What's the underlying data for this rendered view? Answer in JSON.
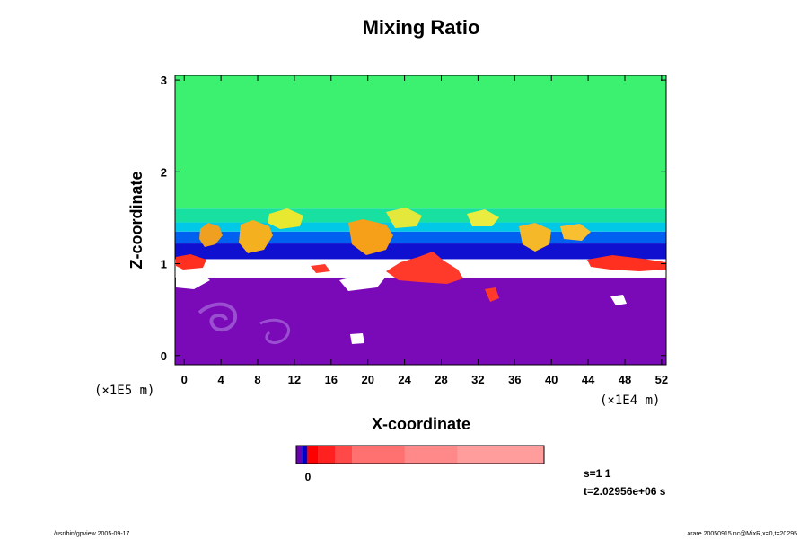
{
  "chart_data": {
    "type": "heatmap",
    "title": "Mixing Ratio",
    "xlabel": "X-coordinate",
    "ylabel": "Z-coordinate",
    "x_unit": "(×1E4 m)",
    "y_unit": "(×1E5 m)",
    "xlim": [
      -1,
      52.5
    ],
    "ylim": [
      -0.1,
      3.05
    ],
    "x_ticks": [
      0,
      4,
      8,
      12,
      16,
      20,
      24,
      28,
      32,
      36,
      40,
      44,
      48,
      52
    ],
    "y_ticks": [
      0,
      1,
      2,
      3
    ],
    "x_tick_labels": [
      "0",
      "4",
      "8",
      "12",
      "16",
      "20",
      "24",
      "28",
      "32",
      "36",
      "40",
      "44",
      "48",
      "52"
    ],
    "y_tick_labels": [
      "0",
      "1",
      "2",
      "3"
    ],
    "field_layers": [
      {
        "name": "lower-purple",
        "z_from": -0.1,
        "z_to": 0.85,
        "color": "#7a0ab8"
      },
      {
        "name": "white-gap",
        "z_from": 0.85,
        "z_to": 1.05,
        "color": "#ffffff"
      },
      {
        "name": "dark-blue",
        "z_from": 1.05,
        "z_to": 1.22,
        "color": "#1010d0"
      },
      {
        "name": "mid-blue",
        "z_from": 1.22,
        "z_to": 1.35,
        "color": "#0060f0"
      },
      {
        "name": "cyan",
        "z_from": 1.35,
        "z_to": 1.45,
        "color": "#00c8e6"
      },
      {
        "name": "teal",
        "z_from": 1.45,
        "z_to": 1.6,
        "color": "#18e0a0"
      },
      {
        "name": "upper-green",
        "z_from": 1.6,
        "z_to": 3.05,
        "color": "#3cf070"
      }
    ],
    "colorbar": {
      "label": "0",
      "colors": [
        "#6a00b0",
        "#0000c8",
        "#ff0000",
        "#ff2020",
        "#ff4848",
        "#ff7070",
        "#ff8888",
        "#ff9d9d"
      ]
    },
    "annotations": {
      "step": "s=1 1",
      "time": "t=2.02956e+06 s"
    }
  },
  "footer": {
    "left": "/usr/bin/gpview 2005-09-17",
    "right": "arare 20050915.nc@MixR,x=0,t=20295"
  }
}
